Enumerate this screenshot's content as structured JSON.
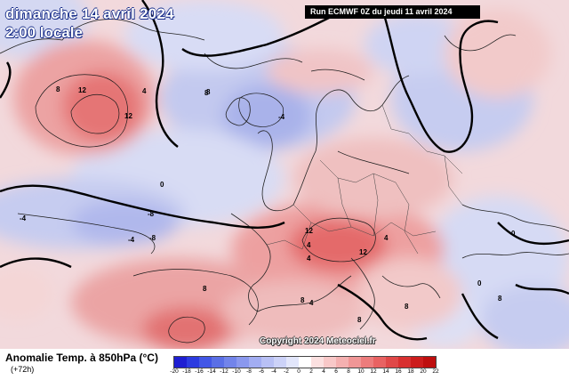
{
  "header": {
    "date": "dimanche 14 avril 2024",
    "time": "2:00 locale",
    "run": "Run ECMWF 0Z du jeudi 11 avril 2024"
  },
  "map": {
    "copyright": "Copyright 2024 Meteociel.fr",
    "contour_labels": [
      "12",
      "12",
      "8",
      "8",
      "4",
      "8",
      "-4",
      "-8",
      "-8",
      "0",
      "-4",
      "8",
      "4",
      "12",
      "12",
      "8",
      "8",
      "8",
      "4",
      "4",
      "-4",
      "8",
      "0",
      "0",
      "4"
    ]
  },
  "legend": {
    "title": "Anomalie Temp. à 850hPa (°C)",
    "forecast_hour": "(+72h)",
    "ticks": [
      "-20",
      "-18",
      "-16",
      "-14",
      "-12",
      "-10",
      "-8",
      "-6",
      "-4",
      "-2",
      "0",
      "2",
      "4",
      "6",
      "8",
      "10",
      "12",
      "14",
      "16",
      "18",
      "20",
      "22"
    ],
    "colors": [
      "#1e1ed2",
      "#2c3be0",
      "#4257e6",
      "#5a6fe6",
      "#7284ea",
      "#8a98ee",
      "#a2adf2",
      "#b8c0f5",
      "#ccd2f8",
      "#e2e6fb",
      "#ffffff",
      "#fbe0e0",
      "#f8c8c8",
      "#f4b0b0",
      "#f09696",
      "#ec7c7c",
      "#e86262",
      "#e04848",
      "#d83030",
      "#cc1c1c",
      "#be0e0e"
    ]
  }
}
